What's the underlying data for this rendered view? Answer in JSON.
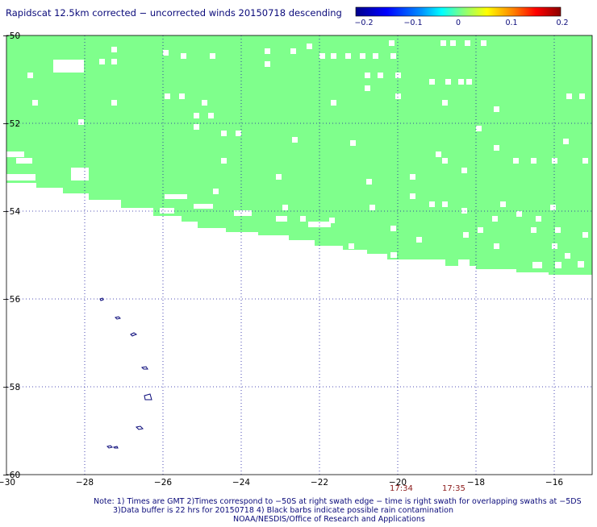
{
  "title": "Rapidscat 12.5km corrected − uncorrected winds 20150718 descending",
  "colorbar": {
    "labels": [
      "−0.2",
      "−0.1",
      "0",
      "0.1",
      "0.2"
    ],
    "colors": [
      "#00008b",
      "#0000ff",
      "#0080ff",
      "#00ffff",
      "#80ff80",
      "#ffff00",
      "#ff8000",
      "#ff0000",
      "#8b0000"
    ]
  },
  "axes": {
    "x_labels": [
      "−30",
      "−28",
      "−26",
      "−24",
      "−22",
      "−20",
      "−18",
      "−16"
    ],
    "y_labels": [
      "−50",
      "−52",
      "−54",
      "−56",
      "−58",
      "−60"
    ]
  },
  "times": [
    "17:34",
    "17:35"
  ],
  "notes": [
    "Note: 1) Times are GMT 2)Times correspond to −50S at right swath edge − time is right swath for overlapping swaths at −5DS",
    "3)Data buffer is 22 hrs for 20150718 4) Black barbs indicate possible rain contamination",
    "NOAA/NESDIS/Office of Research and Applications"
  ],
  "colors": {
    "swath_fill": "#7fff8c",
    "grid": "#1a1aa0",
    "contour": "#0a0a7a",
    "time_label": "#8b1a1a"
  }
}
